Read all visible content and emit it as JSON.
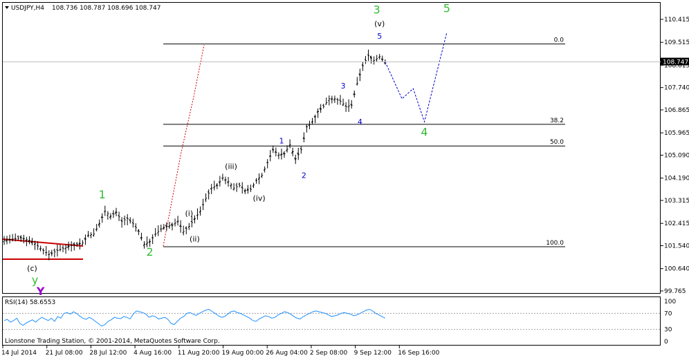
{
  "header": {
    "symbol": "USDJPY,H4",
    "ohlc": "108.736 108.787 108.696 108.747"
  },
  "footer": {
    "copyright": "Lionstone Trading Station, © 2001-2014, MetaQuotes Software Corp."
  },
  "colors": {
    "green": "#33bb33",
    "blue": "#0000cc",
    "red": "#cc0000",
    "purple": "#9900cc",
    "rsi": "#1e90ff",
    "dotted_red": "#cc0000"
  },
  "chart_data": {
    "type": "line",
    "price_axis": {
      "ticks": [
        "110.415",
        "109.515",
        "108.615",
        "107.740",
        "106.865",
        "105.965",
        "105.090",
        "104.190",
        "103.315",
        "102.415",
        "101.540",
        "100.640",
        "99.765"
      ],
      "current": "108.747",
      "range": [
        99.6,
        110.9
      ]
    },
    "time_axis": {
      "ticks": [
        "14 Jul 2014",
        "21 Jul 08:00",
        "28 Jul 12:00",
        "4 Aug 16:00",
        "11 Aug 20:00",
        "19 Aug 00:00",
        "26 Aug 04:00",
        "2 Sep 08:00",
        "9 Sep 12:00",
        "16 Sep 16:00"
      ],
      "bars": 160
    },
    "price_path": [
      [
        0,
        101.75
      ],
      [
        6,
        101.85
      ],
      [
        10,
        101.7
      ],
      [
        14,
        101.35
      ],
      [
        16,
        101.2
      ],
      [
        20,
        101.4
      ],
      [
        24,
        101.55
      ],
      [
        28,
        101.65
      ],
      [
        30,
        101.95
      ],
      [
        32,
        102.0
      ],
      [
        34,
        102.4
      ],
      [
        36,
        102.9
      ],
      [
        38,
        102.7
      ],
      [
        40,
        102.85
      ],
      [
        42,
        102.5
      ],
      [
        44,
        102.6
      ],
      [
        46,
        102.4
      ],
      [
        48,
        102.1
      ],
      [
        50,
        101.6
      ],
      [
        52,
        101.7
      ],
      [
        54,
        102.0
      ],
      [
        56,
        102.2
      ],
      [
        58,
        102.3
      ],
      [
        60,
        102.35
      ],
      [
        62,
        102.5
      ],
      [
        64,
        102.1
      ],
      [
        66,
        102.3
      ],
      [
        68,
        102.6
      ],
      [
        70,
        102.9
      ],
      [
        72,
        103.4
      ],
      [
        74,
        103.8
      ],
      [
        76,
        103.9
      ],
      [
        78,
        104.2
      ],
      [
        80,
        104.05
      ],
      [
        82,
        103.8
      ],
      [
        84,
        103.9
      ],
      [
        86,
        103.7
      ],
      [
        88,
        103.75
      ],
      [
        90,
        104.1
      ],
      [
        92,
        104.3
      ],
      [
        94,
        104.8
      ],
      [
        96,
        105.3
      ],
      [
        98,
        105.1
      ],
      [
        100,
        105.15
      ],
      [
        102,
        105.5
      ],
      [
        104,
        104.95
      ],
      [
        106,
        105.3
      ],
      [
        108,
        106.2
      ],
      [
        110,
        106.4
      ],
      [
        112,
        106.8
      ],
      [
        114,
        107.0
      ],
      [
        116,
        107.3
      ],
      [
        118,
        107.3
      ],
      [
        120,
        107.2
      ],
      [
        122,
        107.0
      ],
      [
        124,
        107.05
      ],
      [
        126,
        107.9
      ],
      [
        128,
        108.6
      ],
      [
        130,
        109.0
      ],
      [
        132,
        108.8
      ],
      [
        134,
        108.95
      ],
      [
        136,
        108.75
      ]
    ],
    "levels": [
      {
        "label": "0.0",
        "price": 109.45
      },
      {
        "label": "38.2",
        "price": 106.3
      },
      {
        "label": "50.0",
        "price": 105.45
      },
      {
        "label": "100.0",
        "price": 101.5
      }
    ],
    "projection": [
      [
        136,
        108.75
      ],
      [
        142,
        107.3
      ],
      [
        146,
        107.7
      ],
      [
        150,
        106.4
      ],
      [
        158,
        109.9
      ]
    ],
    "waves": [
      {
        "label": "1",
        "bar": 35,
        "price": 103.4,
        "color": "green",
        "size": 16
      },
      {
        "label": "2",
        "bar": 52,
        "price": 101.15,
        "color": "green",
        "size": 16
      },
      {
        "label": "3",
        "bar": 133,
        "price": 110.65,
        "color": "green",
        "size": 16
      },
      {
        "label": "4",
        "bar": 150,
        "price": 105.85,
        "color": "green",
        "size": 16
      },
      {
        "label": "5",
        "bar": 158,
        "price": 110.7,
        "color": "green",
        "size": 16
      },
      {
        "label": "(i)",
        "bar": 66,
        "price": 102.7,
        "color": "black",
        "size": 11
      },
      {
        "label": "(ii)",
        "bar": 68,
        "price": 101.7,
        "color": "black",
        "size": 11
      },
      {
        "label": "(iii)",
        "bar": 81,
        "price": 104.55,
        "color": "black",
        "size": 11
      },
      {
        "label": "(iv)",
        "bar": 91,
        "price": 103.3,
        "color": "black",
        "size": 11
      },
      {
        "label": "(v)",
        "bar": 134,
        "price": 110.15,
        "color": "black",
        "size": 11
      },
      {
        "label": "1",
        "bar": 99,
        "price": 105.55,
        "color": "blue",
        "size": 11
      },
      {
        "label": "2",
        "bar": 107,
        "price": 104.2,
        "color": "blue",
        "size": 11
      },
      {
        "label": "3",
        "bar": 121,
        "price": 107.7,
        "color": "blue",
        "size": 11
      },
      {
        "label": "4",
        "bar": 127,
        "price": 106.3,
        "color": "blue",
        "size": 11
      },
      {
        "label": "5",
        "bar": 134,
        "price": 109.65,
        "color": "blue",
        "size": 11
      },
      {
        "label": "(c)",
        "bar": 10,
        "price": 100.55,
        "color": "black",
        "size": 11
      },
      {
        "label": "y",
        "bar": 11,
        "price": 100.05,
        "color": "green",
        "size": 16
      },
      {
        "label": "Y",
        "bar": 13,
        "price": 99.6,
        "color": "purple",
        "size": 16
      }
    ],
    "rsi": {
      "label": "RSI(14) 58.6553",
      "levels": [
        70,
        30
      ],
      "ticks": [
        "100",
        "70",
        "30",
        "0"
      ],
      "values": [
        52,
        55,
        48,
        52,
        58,
        45,
        40,
        46,
        50,
        54,
        48,
        55,
        60,
        56,
        52,
        58,
        50,
        62,
        58,
        70,
        72,
        68,
        74,
        70,
        63,
        58,
        55,
        60,
        56,
        50,
        44,
        38,
        42,
        50,
        54,
        60,
        58,
        57,
        62,
        60,
        56,
        68,
        76,
        74,
        72,
        68,
        60,
        64,
        62,
        56,
        58,
        60,
        55,
        45,
        42,
        50,
        58,
        62,
        70,
        72,
        68,
        65,
        70,
        74,
        78,
        80,
        75,
        70,
        64,
        60,
        62,
        68,
        74,
        76,
        72,
        70,
        66,
        62,
        58,
        52,
        50,
        56,
        60,
        64,
        62,
        58,
        60,
        66,
        70,
        74,
        72,
        68,
        62,
        58,
        56,
        62,
        66,
        70,
        74,
        76,
        74,
        72,
        70,
        66,
        62,
        64,
        66,
        70,
        72,
        70,
        68,
        64,
        66,
        70,
        74,
        78,
        80,
        76,
        70,
        66,
        62,
        58
      ]
    }
  }
}
